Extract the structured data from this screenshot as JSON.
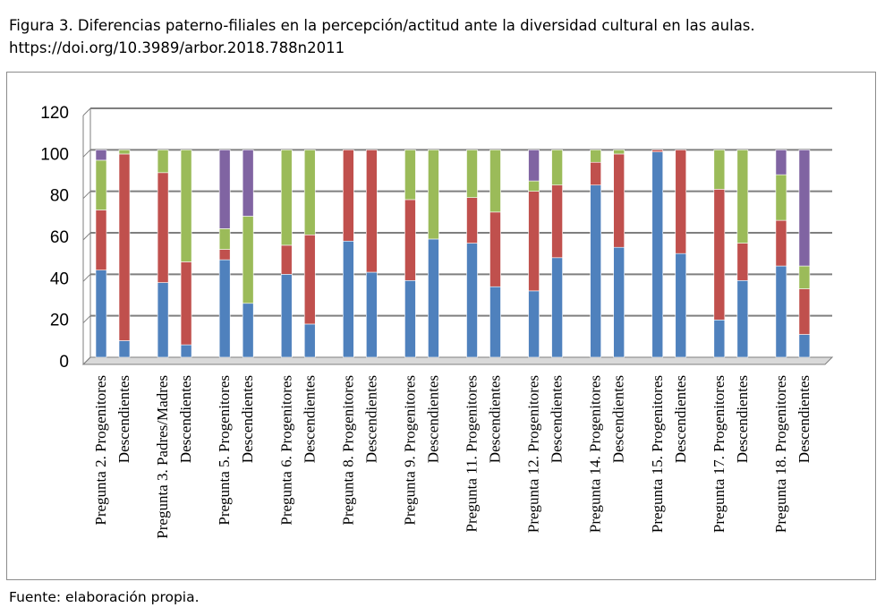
{
  "figure_title": "Figura 3. Diferencias paterno-filiales en la percepción/actitud ante la diversidad cultural en las aulas.",
  "figure_doi": "https://doi.org/10.3989/arbor.2018.788n2011",
  "source_note": "Fuente: elaboración propia.",
  "colors": {
    "series": [
      "#4f81bd",
      "#c0504d",
      "#9bbb59",
      "#8064a2"
    ],
    "gridline": "#7f7f7f",
    "axis": "#7f7f7f"
  },
  "chart_data": {
    "type": "bar",
    "stacked": true,
    "ylim": [
      0,
      120
    ],
    "yticks": [
      0,
      20,
      40,
      60,
      80,
      100,
      120
    ],
    "grid": true,
    "legend": "none",
    "title": "",
    "xlabel": "",
    "ylabel": "",
    "category_groups": [
      {
        "label": "Pregunta 2. Progenitores",
        "second_label": "Descendientes"
      },
      {
        "label": "Pregunta 3. Padres/Madres",
        "second_label": "Descendientes"
      },
      {
        "label": "Pregunta 5. Progenitores",
        "second_label": "Descendientes"
      },
      {
        "label": "Pregunta 6. Progenitores",
        "second_label": "Descendientes"
      },
      {
        "label": "Pregunta 8. Progenitores",
        "second_label": "Descendientes"
      },
      {
        "label": "Pregunta 9. Progenitores",
        "second_label": "Descendientes"
      },
      {
        "label": "Pregunta 11. Progenitores",
        "second_label": "Descendientes"
      },
      {
        "label": "Pregunta 12. Progenitores",
        "second_label": "Descendientes"
      },
      {
        "label": "Pregunta 14. Progenitores",
        "second_label": "Descendientes"
      },
      {
        "label": "Pregunta 15. Progenitores",
        "second_label": "Descendientes"
      },
      {
        "label": "Pregunta 17. Progenitores",
        "second_label": "Descendientes"
      },
      {
        "label": "Pregunta 18. Progenitores",
        "second_label": "Descendientes"
      }
    ],
    "series": [
      {
        "values": [
          42,
          8,
          36,
          6,
          47,
          26,
          40,
          16,
          56,
          41,
          37,
          57,
          55,
          34,
          32,
          48,
          83,
          53,
          99,
          50,
          18,
          37,
          44,
          11
        ]
      },
      {
        "values": [
          29,
          90,
          53,
          40,
          5,
          0,
          14,
          43,
          44,
          59,
          39,
          0,
          22,
          36,
          48,
          35,
          11,
          45,
          1,
          50,
          63,
          18,
          22,
          22
        ]
      },
      {
        "values": [
          24,
          2,
          11,
          54,
          10,
          42,
          46,
          41,
          0,
          0,
          24,
          43,
          23,
          30,
          5,
          17,
          6,
          2,
          0,
          0,
          19,
          45,
          22,
          11
        ]
      },
      {
        "values": [
          5,
          0,
          0,
          0,
          38,
          32,
          0,
          0,
          0,
          0,
          0,
          0,
          0,
          0,
          15,
          0,
          0,
          0,
          0,
          0,
          0,
          0,
          12,
          56
        ]
      }
    ]
  }
}
